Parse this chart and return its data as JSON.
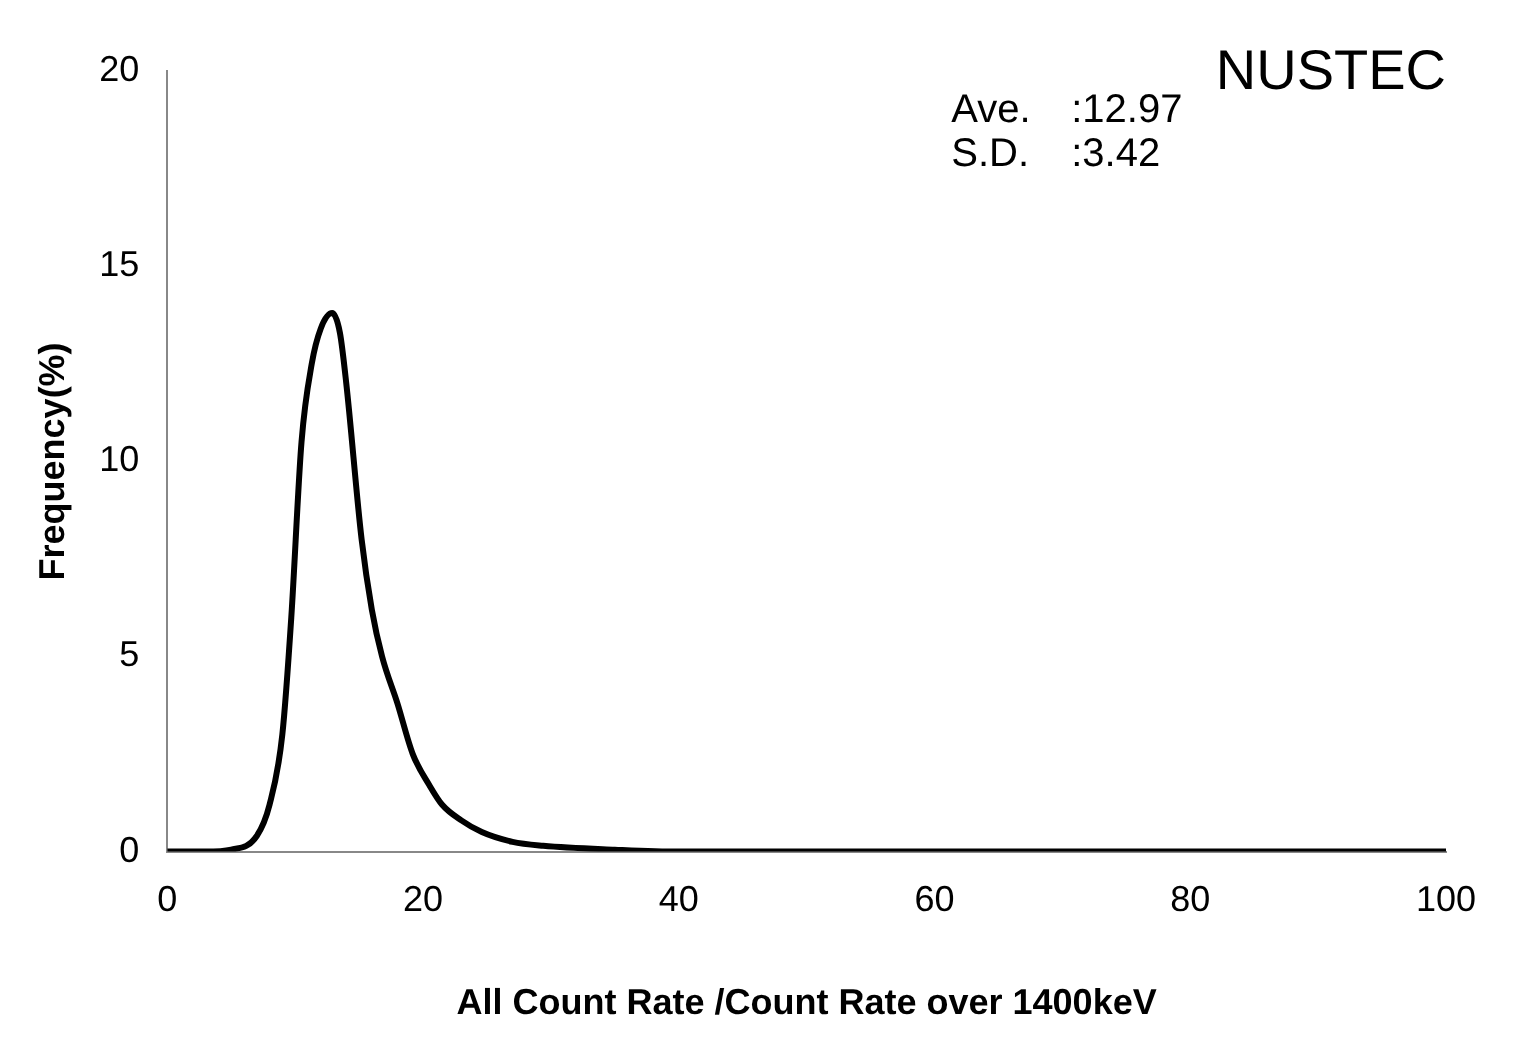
{
  "chart_data": {
    "type": "line",
    "title": "NUSTEC",
    "xlabel": "All Count Rate /Count Rate over 1400keV",
    "ylabel": "Frequency(%)",
    "annotations": [
      "Ave.      :12.97",
      "S.D.      :3.42"
    ],
    "series": [
      {
        "color": "#000000",
        "x": [
          0,
          3,
          5,
          7,
          8,
          9,
          9.7,
          10.5,
          11.3,
          12,
          12.9,
          13.5,
          14,
          15.2,
          16,
          16.8,
          18,
          19.2,
          20.5,
          21.5,
          23,
          24.6,
          27,
          29.4,
          35,
          40,
          50,
          60,
          70,
          80,
          90,
          100
        ],
        "values": [
          0,
          0,
          0.05,
          0.4,
          1.2,
          3,
          6,
          10.5,
          12.5,
          13.4,
          13.8,
          13.3,
          12,
          8,
          6.2,
          5,
          3.8,
          2.5,
          1.7,
          1.2,
          0.8,
          0.5,
          0.25,
          0.15,
          0.05,
          0,
          0,
          0,
          0,
          0,
          0,
          0
        ]
      }
    ],
    "xlim": [
      0,
      100
    ],
    "xticks": [
      0,
      20,
      40,
      60,
      80,
      100
    ],
    "ylim": [
      0,
      20
    ],
    "yticks": [
      0,
      5,
      10,
      15,
      20
    ],
    "grid": false,
    "legend": false,
    "marker": "none",
    "line_style": "solid"
  }
}
